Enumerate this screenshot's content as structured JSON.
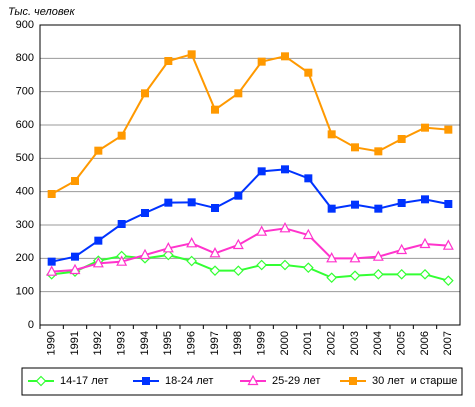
{
  "chart_data": {
    "type": "line",
    "y_label": "Тыс. человек",
    "categories": [
      "1990",
      "1991",
      "1992",
      "1993",
      "1994",
      "1995",
      "1996",
      "1997",
      "1998",
      "1999",
      "2000",
      "2001",
      "2002",
      "2003",
      "2004",
      "2005",
      "2006",
      "2007"
    ],
    "series": [
      {
        "name": "14-17 лет",
        "color": "#33ff33",
        "marker": "diamond",
        "values": [
          152,
          160,
          193,
          207,
          200,
          210,
          192,
          163,
          163,
          180,
          180,
          172,
          142,
          148,
          152,
          152,
          152,
          133
        ]
      },
      {
        "name": "18-24 лет",
        "color": "#0033ff",
        "marker": "square",
        "values": [
          190,
          205,
          253,
          303,
          336,
          367,
          368,
          351,
          388,
          461,
          467,
          440,
          349,
          361,
          349,
          366,
          377,
          363
        ]
      },
      {
        "name": "25-29 лет",
        "color": "#ff33cc",
        "marker": "triangle",
        "values": [
          160,
          165,
          185,
          190,
          210,
          230,
          245,
          215,
          240,
          280,
          290,
          270,
          200,
          200,
          205,
          225,
          243,
          238
        ]
      },
      {
        "name": "30 лет  и старше",
        "color": "#ff9900",
        "marker": "square",
        "values": [
          393,
          432,
          523,
          568,
          695,
          792,
          812,
          646,
          695,
          790,
          806,
          757,
          572,
          533,
          521,
          558,
          592,
          586
        ]
      }
    ],
    "ylim": [
      0,
      900
    ],
    "yticks": [
      0,
      100,
      200,
      300,
      400,
      500,
      600,
      700,
      800,
      900
    ],
    "grid": true,
    "legend": "bottom"
  }
}
